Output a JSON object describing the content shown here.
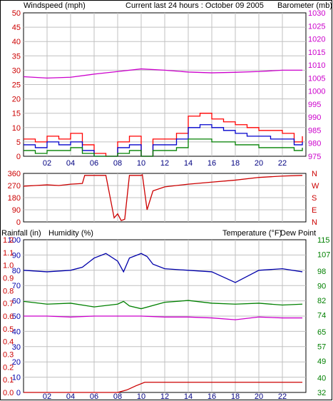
{
  "header": {
    "wind_label": "Windspeed (mph)",
    "title": "Current last 24 hours : October 09 2005",
    "baro_label": "Barometer (mb)"
  },
  "bottom_header": {
    "rain_label": "Rainfall (in)",
    "humidity_label": "Humidity (%)",
    "temp_label": "Temperature (°F)",
    "dew_label": "Dew Point"
  },
  "colors": {
    "wind": "#cc0000",
    "wind_gust": "#ff0000",
    "wind_avg": "#0000cc",
    "wind_low": "#008000",
    "barometer": "#cc00cc",
    "direction": "#cc0000",
    "humidity": "#0000aa",
    "temperature": "#008000",
    "dewpoint": "#cc00cc",
    "rainfall": "#cc0000",
    "grid": "#c0c0c0"
  },
  "chart_data": [
    {
      "type": "line",
      "name": "wind-barometer",
      "x_ticks": [
        "02",
        "04",
        "06",
        "08",
        "10",
        "12",
        "14",
        "16",
        "18",
        "20",
        "22"
      ],
      "y_left_ticks": [
        "0",
        "5",
        "10",
        "15",
        "20",
        "25",
        "30",
        "35",
        "40",
        "45",
        "50"
      ],
      "y_left_range": [
        0,
        50
      ],
      "y_right_ticks": [
        "975",
        "980",
        "985",
        "990",
        "995",
        "1000",
        "1005",
        "1010",
        "1015",
        "1020",
        "1025",
        "1030"
      ],
      "y_right_range": [
        975,
        1030
      ],
      "series": [
        {
          "role": "wind-gust",
          "x": [
            0,
            1,
            2,
            3,
            4,
            5,
            6,
            7,
            8,
            9,
            10,
            11,
            12,
            13,
            14,
            15,
            16,
            17,
            18,
            19,
            20,
            21,
            22,
            23,
            23.7
          ],
          "values": [
            6,
            5,
            7,
            6,
            8,
            4,
            1,
            0,
            5,
            7,
            0,
            6,
            6,
            8,
            14,
            15,
            13,
            12,
            11,
            10,
            9,
            9,
            8,
            5,
            7
          ]
        },
        {
          "role": "wind-average",
          "x": [
            0,
            1,
            2,
            3,
            4,
            5,
            6,
            7,
            8,
            9,
            10,
            11,
            12,
            13,
            14,
            15,
            16,
            17,
            18,
            19,
            20,
            21,
            22,
            23,
            23.7
          ],
          "values": [
            4,
            3,
            5,
            4,
            5,
            2,
            0,
            0,
            3,
            4,
            0,
            4,
            4,
            6,
            10,
            11,
            10,
            9,
            8,
            7,
            7,
            6,
            6,
            4,
            5
          ]
        },
        {
          "role": "wind-low",
          "x": [
            0,
            1,
            2,
            3,
            4,
            5,
            6,
            7,
            8,
            9,
            10,
            11,
            12,
            13,
            14,
            15,
            16,
            17,
            18,
            19,
            20,
            21,
            22,
            23,
            23.7
          ],
          "values": [
            2,
            1,
            2,
            2,
            3,
            1,
            0,
            0,
            1,
            2,
            0,
            2,
            2,
            3,
            6,
            6,
            5,
            5,
            4,
            4,
            3,
            3,
            3,
            2,
            3
          ]
        },
        {
          "role": "barometer",
          "x": [
            0,
            2,
            4,
            6,
            8,
            10,
            12,
            14,
            16,
            18,
            20,
            22,
            23.7
          ],
          "values": [
            1005.5,
            1005,
            1005.3,
            1006.5,
            1007.5,
            1008.5,
            1008,
            1007.3,
            1007,
            1007.2,
            1007.5,
            1008,
            1008
          ]
        }
      ]
    },
    {
      "type": "line",
      "name": "wind-direction",
      "y_left_ticks": [
        "0",
        "90",
        "180",
        "270",
        "360"
      ],
      "y_left_range": [
        0,
        360
      ],
      "y_right_ticks": [
        "N",
        "E",
        "S",
        "W",
        "N"
      ],
      "series": [
        {
          "role": "direction",
          "x": [
            0,
            1,
            2,
            3,
            4,
            5,
            5.2,
            7,
            7.7,
            8,
            8.3,
            8.6,
            9,
            9.1,
            10,
            10.1,
            10.5,
            11,
            12,
            14,
            16,
            18,
            20,
            22,
            23.7
          ],
          "values": [
            265,
            270,
            275,
            270,
            280,
            285,
            345,
            345,
            30,
            60,
            10,
            20,
            345,
            345,
            345,
            350,
            90,
            230,
            260,
            280,
            295,
            310,
            330,
            340,
            345
          ]
        }
      ]
    },
    {
      "type": "line",
      "name": "humidity-temperature-rain",
      "y_left_ticks": [
        "0",
        "10",
        "20",
        "30",
        "40",
        "50",
        "60",
        "70",
        "80",
        "90",
        "100"
      ],
      "y_left_range": [
        0,
        100
      ],
      "y_rain_ticks": [
        "0.0",
        "0.1",
        "0.2",
        "0.3",
        "0.4",
        "0.5",
        "0.6",
        "0.7",
        "0.8",
        "0.9",
        "1.0",
        "1.1",
        "1.2"
      ],
      "y_rain_range": [
        0,
        1.2
      ],
      "y_right_ticks": [
        "32",
        "40",
        "49",
        "57",
        "65",
        "74",
        "82",
        "90",
        "98",
        "107",
        "115"
      ],
      "y_right_range": [
        32,
        115
      ],
      "series": [
        {
          "role": "humidity",
          "x": [
            0,
            2,
            4,
            5,
            6,
            7,
            8,
            8.5,
            9,
            10,
            10.5,
            11,
            12,
            14,
            16,
            18,
            20,
            22,
            23.7
          ],
          "values": [
            80,
            79,
            80,
            82,
            88,
            91,
            86,
            79,
            88,
            91,
            89,
            84,
            81,
            80,
            79,
            72,
            80,
            81,
            79
          ]
        },
        {
          "role": "temperature",
          "x": [
            0,
            2,
            4,
            6,
            8,
            8.5,
            9,
            10,
            12,
            14,
            16,
            18,
            20,
            22,
            23.7
          ],
          "values": [
            81.5,
            80,
            80.5,
            78.5,
            80,
            81.5,
            79,
            77.5,
            81,
            82,
            80.5,
            80,
            80.5,
            79.5,
            80
          ]
        },
        {
          "role": "dewpoint",
          "x": [
            0,
            2,
            4,
            6,
            8,
            10,
            12,
            14,
            16,
            18,
            20,
            22,
            23.7
          ],
          "values": [
            73.5,
            73.5,
            73,
            73.5,
            73.5,
            73.5,
            73,
            73,
            72.5,
            71.5,
            73,
            72.5,
            72.5
          ]
        },
        {
          "role": "rainfall",
          "x": [
            0,
            8,
            8.8,
            9.5,
            10.3,
            11,
            23.7
          ],
          "values": [
            0,
            0,
            0.02,
            0.05,
            0.08,
            0.08,
            0.08
          ]
        }
      ]
    }
  ]
}
